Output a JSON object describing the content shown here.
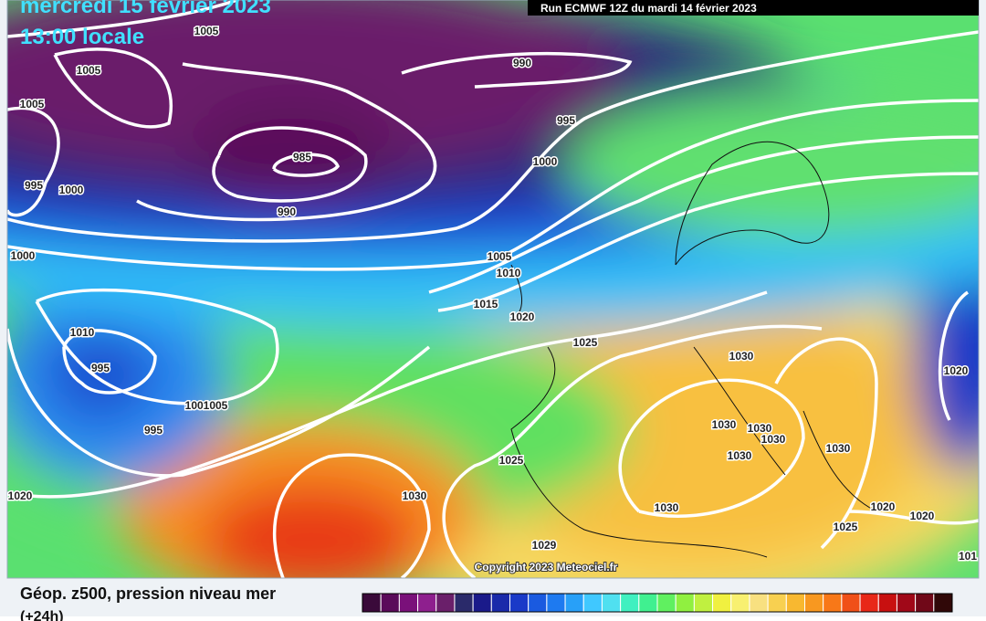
{
  "header": {
    "date": "mercredi 15 février 2023",
    "time": "13:00 locale",
    "run": "Run ECMWF 12Z du mardi 14 février 2023"
  },
  "map": {
    "isobar_labels": [
      "1005",
      "1005",
      "1005",
      "995",
      "1000",
      "985",
      "990",
      "990",
      "995",
      "1000",
      "1000",
      "1005",
      "1010",
      "1015",
      "1020",
      "1025",
      "1030",
      "1010",
      "995",
      "1001005",
      "995",
      "1030",
      "1030",
      "1030",
      "1030",
      "1030",
      "1020",
      "1025",
      "1030",
      "1030",
      "1020",
      "1020",
      "1020",
      "1025",
      "1029",
      "101"
    ],
    "copyright": "Copyright 2023 Meteociel.fr"
  },
  "legend": {
    "title": "Géop. z500, pression niveau mer",
    "subtitle": "(+24h)",
    "colors": [
      "#3a0a3a",
      "#5a0a5a",
      "#7a107a",
      "#8e1f8e",
      "#6a1f6a",
      "#2a2a6a",
      "#1a1a8a",
      "#1a2aaa",
      "#1a3ac8",
      "#1a5ae0",
      "#1e7af0",
      "#28a0f8",
      "#40c8ff",
      "#50e0f0",
      "#40f0c0",
      "#40f090",
      "#60f060",
      "#90f040",
      "#c0f040",
      "#f0f040",
      "#f8f070",
      "#f8e080",
      "#f8d050",
      "#f8b830",
      "#f89820",
      "#f87818",
      "#f05018",
      "#e82818",
      "#c81010",
      "#a00818",
      "#700818",
      "#300808"
    ]
  }
}
